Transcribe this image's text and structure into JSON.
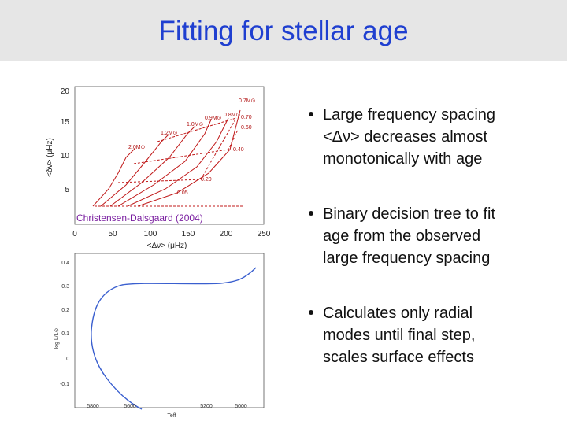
{
  "header": {
    "title": "Fitting for stellar age"
  },
  "top_plot": {
    "x_label": "<Δν> (μHz)",
    "y_label": "<δν> (μHz)",
    "x_ticks": [
      "0",
      "50",
      "100",
      "150",
      "200",
      "250"
    ],
    "y_ticks": [
      "5",
      "10",
      "15",
      "20"
    ],
    "mass_labels": [
      "0.7M⊙",
      "0.8M⊙",
      "0.9M⊙",
      "1.0M⊙",
      "1.2M⊙",
      "2.0M⊙"
    ],
    "age_labels": [
      "0.70",
      "0.60",
      "0.40",
      "0.20",
      "0.05"
    ],
    "caption": "Christensen-Dalsgaard (2004)"
  },
  "bottom_plot": {
    "x_label": "Teff",
    "y_label": "log L/L⊙",
    "x_ticks": [
      "5800",
      "5600",
      "5200",
      "5000"
    ],
    "y_ticks": [
      "0.4",
      "0.3",
      "0.2",
      "0.1",
      "0",
      "-0.1"
    ]
  },
  "bullets": [
    {
      "lines": [
        "Large frequency spacing",
        "<Δν> decreases almost",
        "monotonically with age"
      ]
    },
    {
      "lines": [
        "Binary decision tree to fit",
        "age from the observed",
        "large frequency spacing"
      ]
    },
    {
      "lines": [
        "Calculates only radial",
        "modes until final step,",
        "scales surface effects"
      ]
    }
  ]
}
